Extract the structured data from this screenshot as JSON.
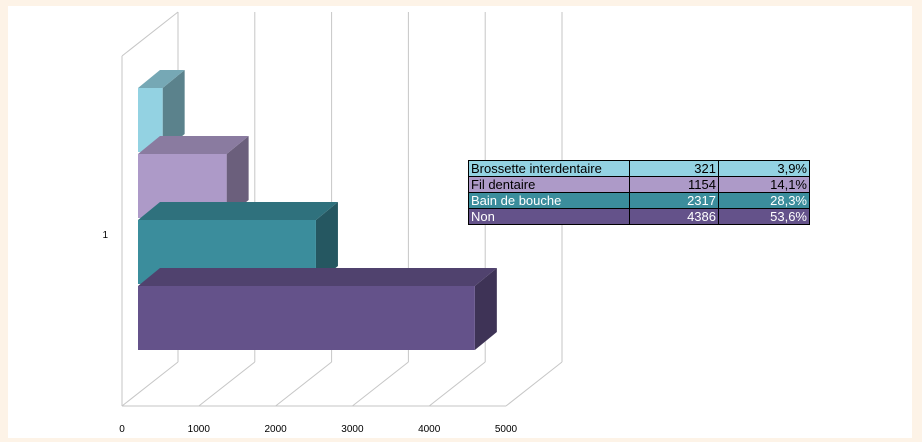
{
  "chart_data": {
    "type": "bar",
    "orientation": "horizontal",
    "style": "3d-stacked-offset",
    "categories": [
      "1"
    ],
    "series": [
      {
        "name": "Brossette interdentaire",
        "value": 321,
        "percent": "3,9%",
        "color": "#93d2e2"
      },
      {
        "name": "Fil dentaire",
        "value": 1154,
        "percent": "14,1%",
        "color": "#ad9ac8"
      },
      {
        "name": "Bain de bouche",
        "value": 2317,
        "percent": "28,3%",
        "color": "#3b8d9c"
      },
      {
        "name": "Non",
        "value": 4386,
        "percent": "53,6%",
        "color": "#64528a"
      }
    ],
    "xlim": [
      0,
      5000
    ],
    "x_ticks": [
      "0",
      "1000",
      "2000",
      "3000",
      "4000",
      "5000"
    ],
    "y_category_label": "1",
    "grid": true,
    "legend": "data-table"
  }
}
